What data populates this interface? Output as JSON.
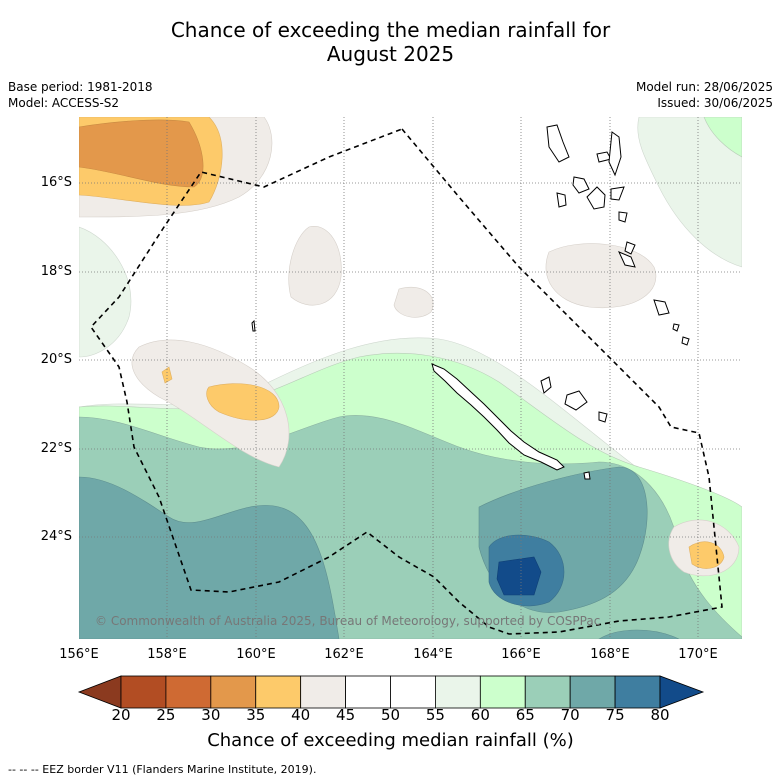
{
  "title_line1": "Chance of exceeding the median rainfall for",
  "title_line2": "August 2025",
  "meta": {
    "base_period": "Base period: 1981-2018",
    "model": "Model: ACCESS-S2",
    "model_run": "Model run: 28/06/2025",
    "issued": "Issued: 30/06/2025"
  },
  "map": {
    "lat_labels": [
      "16°S",
      "18°S",
      "20°S",
      "22°S",
      "24°S"
    ],
    "lon_labels": [
      "156°E",
      "158°E",
      "160°E",
      "162°E",
      "164°E",
      "166°E",
      "168°E",
      "170°E"
    ],
    "copyright": "© Commonwealth of Australia 2025, Bureau of Meteorology, supported by COSPPac",
    "eez_line_color": "#000000",
    "land_outline_color": "#000000"
  },
  "legend": {
    "title": "Chance of exceeding median rainfall (%)",
    "ticks": [
      "20",
      "25",
      "30",
      "35",
      "40",
      "45",
      "50",
      "55",
      "60",
      "65",
      "70",
      "75",
      "80"
    ],
    "colors": [
      "#8b3a1f",
      "#b24d23",
      "#cf6a33",
      "#e3984b",
      "#fdca6a",
      "#f0ece8",
      "#ffffff",
      "#ffffff",
      "#eaf5ea",
      "#ccffcc",
      "#9bcfb8",
      "#6fa8a8",
      "#3f7ea0",
      "#124b8a"
    ]
  },
  "footnote": "--  --  -- EEZ border V11 (Flanders Marine Institute, 2019)."
}
